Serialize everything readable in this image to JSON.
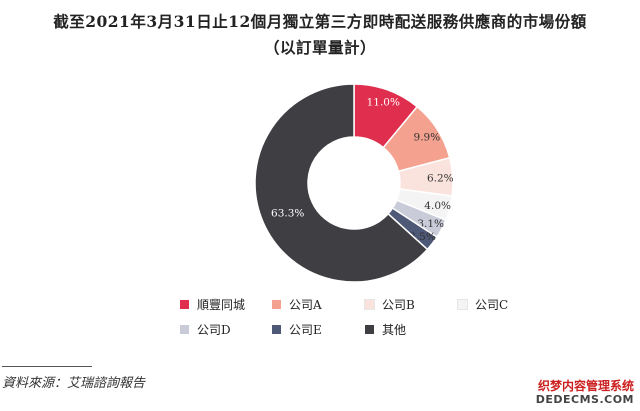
{
  "title_line1": "截至2021年3月31日止12個月獨立第三方即時配送服務供應商的市場份額",
  "title_line2": "（以訂單量計）",
  "source": "資料來源：艾瑞諮詢報告",
  "watermark": {
    "line1": "织梦内容管理系统",
    "line2": "DEDECMS.COM"
  },
  "chart_data": {
    "type": "pie",
    "title": "截至2021年3月31日止12個月獨立第三方即時配送服務供應商的市場份額（以訂單量計）",
    "donut": true,
    "legend_position": "bottom",
    "slices": [
      {
        "label": "順豐同城",
        "value": 11.0,
        "value_label": "11.0%",
        "color": "#e02f4e",
        "text_color": "#ffffff"
      },
      {
        "label": "公司A",
        "value": 9.9,
        "value_label": "9.9%",
        "color": "#f4a190",
        "text_color": "#333333"
      },
      {
        "label": "公司B",
        "value": 6.2,
        "value_label": "6.2%",
        "color": "#fbe3dd",
        "text_color": "#333333"
      },
      {
        "label": "公司C",
        "value": 4.0,
        "value_label": "4.0%",
        "color": "#f4f4f4",
        "text_color": "#333333"
      },
      {
        "label": "公司D",
        "value": 3.1,
        "value_label": "3.1%",
        "color": "#c9cbd8",
        "text_color": "#333333"
      },
      {
        "label": "公司E",
        "value": 2.5,
        "value_label": "2.5%",
        "color": "#4e5877",
        "text_color": "#333333"
      },
      {
        "label": "其他",
        "value": 63.3,
        "value_label": "63.3%",
        "color": "#3f3e43",
        "text_color": "#ffffff"
      }
    ]
  }
}
